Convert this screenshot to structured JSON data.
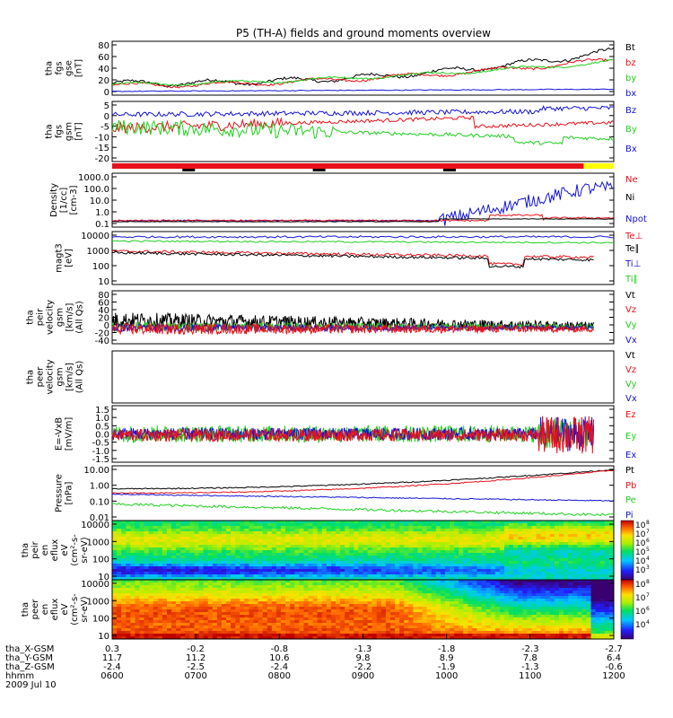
{
  "title": "P5 (TH-A) fields and ground moments overview",
  "colors": {
    "black": "#000000",
    "red": "#e8101a",
    "green": "#1fd11f",
    "blue": "#1414d8",
    "yellow": "#ffff00"
  },
  "chart_data": {
    "type": "line",
    "x_axis": {
      "tick_times": [
        "0600",
        "0700",
        "0800",
        "0900",
        "1000",
        "1100",
        "1200"
      ],
      "rows": [
        {
          "label": "tha_X-GSM",
          "values": [
            "0.3",
            "-0.2",
            "-0.8",
            "-1.3",
            "-1.8",
            "-2.3",
            "-2.7"
          ]
        },
        {
          "label": "tha_Y-GSM",
          "values": [
            "11.7",
            "11.2",
            "10.6",
            "9.8",
            "8.9",
            "7.8",
            "6.4"
          ]
        },
        {
          "label": "tha_Z-GSM",
          "values": [
            "-2.4",
            "-2.5",
            "-2.4",
            "-2.2",
            "-1.9",
            "-1.3",
            "-0.6"
          ]
        },
        {
          "label": "hhmm",
          "values": [
            "0600",
            "0700",
            "0800",
            "0900",
            "1000",
            "1100",
            "1200"
          ]
        }
      ],
      "date": "2009 Jul 10"
    },
    "panels": [
      {
        "id": "fgs_gse",
        "ylabel": [
          "tha",
          "fgs",
          "gse",
          "[nT]"
        ],
        "ticks": [
          "80",
          "60",
          "40",
          "20",
          "0"
        ],
        "ylim": [
          -10,
          90
        ],
        "series": [
          {
            "name": "Bt",
            "color": "black"
          },
          {
            "name": "bz",
            "color": "red"
          },
          {
            "name": "by",
            "color": "green"
          },
          {
            "name": "bx",
            "color": "blue"
          }
        ]
      },
      {
        "id": "fgs_gsm",
        "ylabel": [
          "tha",
          "fgs",
          "gsm",
          "[nT]"
        ],
        "ticks": [
          "5",
          "0",
          "-5",
          "-10",
          "-15",
          "-20"
        ],
        "ylim": [
          -22,
          7
        ],
        "series": [
          {
            "name": "Bz",
            "color": "blue"
          },
          {
            "name": "By",
            "color": "green"
          },
          {
            "name": "Bx",
            "color": "blue"
          }
        ]
      },
      {
        "id": "density",
        "ylabel": [
          "Density",
          "[1/cc]",
          "[cm-3]"
        ],
        "ticks": [
          "1000.0",
          "100.0",
          "10.0",
          "1.0",
          "0.1"
        ],
        "log": true,
        "ylim": [
          0.05,
          2000
        ],
        "series": [
          {
            "name": "Ne",
            "color": "red"
          },
          {
            "name": "Ni",
            "color": "black"
          },
          {
            "name": "Npot",
            "color": "blue"
          }
        ]
      },
      {
        "id": "temp",
        "ylabel": [
          "magt3",
          "[eV]"
        ],
        "ticks": [
          "10000",
          "1000",
          "100",
          "10"
        ],
        "log": true,
        "ylim": [
          10,
          10000
        ],
        "series": [
          {
            "name": "Te⊥",
            "color": "red"
          },
          {
            "name": "Te∥",
            "color": "black"
          },
          {
            "name": "Ti⊥",
            "color": "blue"
          },
          {
            "name": "Ti∥",
            "color": "green"
          }
        ]
      },
      {
        "id": "peir_vel",
        "ylabel": [
          "tha",
          "peir",
          "velocity",
          "gsm",
          "[km/s]",
          "(All Qs)"
        ],
        "ticks": [
          "80",
          "60",
          "40",
          "20",
          "0",
          "-20",
          "-40"
        ],
        "ylim": [
          -45,
          90
        ],
        "series": [
          {
            "name": "Vt",
            "color": "black"
          },
          {
            "name": "Vz",
            "color": "red"
          },
          {
            "name": "Vy",
            "color": "green"
          },
          {
            "name": "Vx",
            "color": "blue"
          }
        ]
      },
      {
        "id": "peer_vel",
        "ylabel": [
          "tha",
          "peer",
          "velocity",
          "gsm",
          "[km/s]",
          "(All Qs)"
        ],
        "ticks": [],
        "series": [
          {
            "name": "Vt",
            "color": "black"
          },
          {
            "name": "Vz",
            "color": "red"
          },
          {
            "name": "Vy",
            "color": "green"
          },
          {
            "name": "Vx",
            "color": "blue"
          }
        ]
      },
      {
        "id": "efield",
        "ylabel": [
          "E=-VxB",
          "[mV/m]"
        ],
        "ticks": [
          "1.5",
          "1.0",
          "0.5",
          "0.0",
          "-0.5",
          "-1.0",
          "-1.5"
        ],
        "ylim": [
          -1.7,
          1.7
        ],
        "series": [
          {
            "name": "Ez",
            "color": "red"
          },
          {
            "name": "Ey",
            "color": "green"
          },
          {
            "name": "Ex",
            "color": "blue"
          }
        ]
      },
      {
        "id": "pressure",
        "ylabel": [
          "Pressure",
          "[nPa]"
        ],
        "ticks": [
          "10.00",
          "1.00",
          "0.10",
          "0.01"
        ],
        "log": true,
        "ylim": [
          0.006,
          12
        ],
        "series": [
          {
            "name": "Pt",
            "color": "black"
          },
          {
            "name": "Pb",
            "color": "red"
          },
          {
            "name": "Pe",
            "color": "green"
          },
          {
            "name": "Pi",
            "color": "blue"
          }
        ]
      },
      {
        "id": "peir_spec",
        "type": "heatmap",
        "ylabel": [
          "tha",
          "peir",
          "en",
          "eflux",
          "eV",
          "(cm²-s-",
          "sr-eV)"
        ],
        "ticks": [
          "10000",
          "1000",
          "100",
          "10"
        ],
        "colorbar": [
          {
            "base": "10",
            "exp": "8"
          },
          {
            "base": "10",
            "exp": "7"
          },
          {
            "base": "10",
            "exp": "6"
          },
          {
            "base": "10",
            "exp": "5"
          },
          {
            "base": "10",
            "exp": "4"
          },
          {
            "base": "10",
            "exp": "3"
          }
        ]
      },
      {
        "id": "peer_spec",
        "type": "heatmap",
        "ylabel": [
          "tha",
          "peer",
          "en",
          "eflux",
          "eV",
          "(cm²-s-",
          "sr-eV)"
        ],
        "ticks": [
          "10000",
          "1000",
          "100",
          "10"
        ],
        "colorbar": [
          {
            "base": "10",
            "exp": "8"
          },
          {
            "base": "10",
            "exp": "7"
          },
          {
            "base": "10",
            "exp": "6"
          },
          {
            "base": "10",
            "exp": "4"
          }
        ]
      }
    ],
    "mode_bar": {
      "segments": [
        {
          "from": 0,
          "to": 0.94,
          "color": "red"
        },
        {
          "from": 0.94,
          "to": 1,
          "color": "yellow"
        }
      ]
    }
  }
}
